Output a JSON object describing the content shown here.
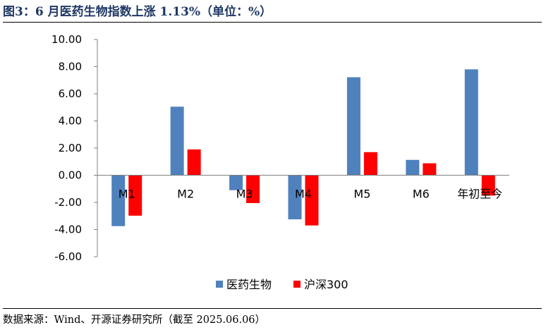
{
  "header": {
    "title": "图3：6 月医药生物指数上涨 1.13%（单位：%）"
  },
  "footer": {
    "source": "数据来源：Wind、开源证券研究所（截至 2025.06.06）"
  },
  "chart_data": {
    "type": "bar",
    "categories": [
      "M1",
      "M2",
      "M3",
      "M4",
      "M5",
      "M6",
      "年初至今"
    ],
    "series": [
      {
        "name": "医药生物",
        "color": "#4f81bd",
        "values": [
          -3.75,
          5.05,
          -1.1,
          -3.25,
          7.22,
          1.13,
          7.8
        ]
      },
      {
        "name": "沪深300",
        "color": "#ff0000",
        "values": [
          -2.98,
          1.9,
          -2.05,
          -3.7,
          1.7,
          0.88,
          -1.5
        ]
      }
    ],
    "ylim": [
      -6,
      10
    ],
    "yticks": [
      "10.00",
      "8.00",
      "6.00",
      "4.00",
      "2.00",
      "0.00",
      "-2.00",
      "-4.00",
      "-6.00"
    ],
    "title": "",
    "xlabel": "",
    "ylabel": "",
    "legend_position": "bottom",
    "grid": false
  }
}
